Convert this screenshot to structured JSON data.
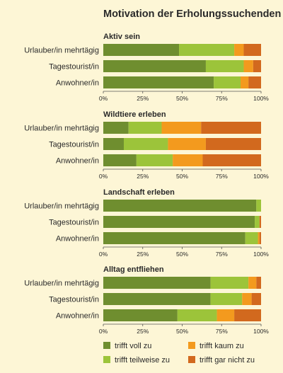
{
  "chart_data": {
    "type": "bar",
    "stacked": true,
    "orientation": "horizontal",
    "title": "Motivation der Erholungssuchenden",
    "categories": [
      "Urlauber/in mehrtägig",
      "Tagestourist/in",
      "Anwohner/in"
    ],
    "xlim": [
      0,
      100
    ],
    "xticks": [
      "0%",
      "25%",
      "50%",
      "75%",
      "100%"
    ],
    "legend_position": "bottom",
    "series_colors": [
      "#6f8e2f",
      "#9cc43a",
      "#f39a1e",
      "#d2691e"
    ],
    "legend": [
      "trifft voll zu",
      "trifft teilweise zu",
      "trifft kaum zu",
      "trifft gar nicht zu"
    ],
    "panels": [
      {
        "title": "Aktiv sein",
        "series": [
          {
            "name": "trifft voll zu",
            "values": [
              48,
              65,
              70
            ]
          },
          {
            "name": "trifft teilweise zu",
            "values": [
              35,
              24,
              17
            ]
          },
          {
            "name": "trifft kaum zu",
            "values": [
              6,
              6,
              5
            ]
          },
          {
            "name": "trifft gar nicht zu",
            "values": [
              11,
              5,
              8
            ]
          }
        ]
      },
      {
        "title": "Wildtiere erleben",
        "series": [
          {
            "name": "trifft voll zu",
            "values": [
              16,
              13,
              21
            ]
          },
          {
            "name": "trifft teilweise zu",
            "values": [
              21,
              28,
              23
            ]
          },
          {
            "name": "trifft kaum zu",
            "values": [
              25,
              24,
              19
            ]
          },
          {
            "name": "trifft gar nicht zu",
            "values": [
              38,
              35,
              37
            ]
          }
        ]
      },
      {
        "title": "Landschaft erleben",
        "series": [
          {
            "name": "trifft voll zu",
            "values": [
              97,
              96,
              90
            ]
          },
          {
            "name": "trifft teilweise zu",
            "values": [
              3,
              3,
              8
            ]
          },
          {
            "name": "trifft kaum zu",
            "values": [
              0,
              0,
              1
            ]
          },
          {
            "name": "trifft gar nicht zu",
            "values": [
              0,
              1,
              1
            ]
          }
        ]
      },
      {
        "title": "Alltag entfliehen",
        "series": [
          {
            "name": "trifft voll zu",
            "values": [
              68,
              68,
              47
            ]
          },
          {
            "name": "trifft teilweise zu",
            "values": [
              24,
              20,
              25
            ]
          },
          {
            "name": "trifft kaum zu",
            "values": [
              5,
              6,
              11
            ]
          },
          {
            "name": "trifft gar nicht zu",
            "values": [
              3,
              6,
              17
            ]
          }
        ]
      }
    ]
  }
}
